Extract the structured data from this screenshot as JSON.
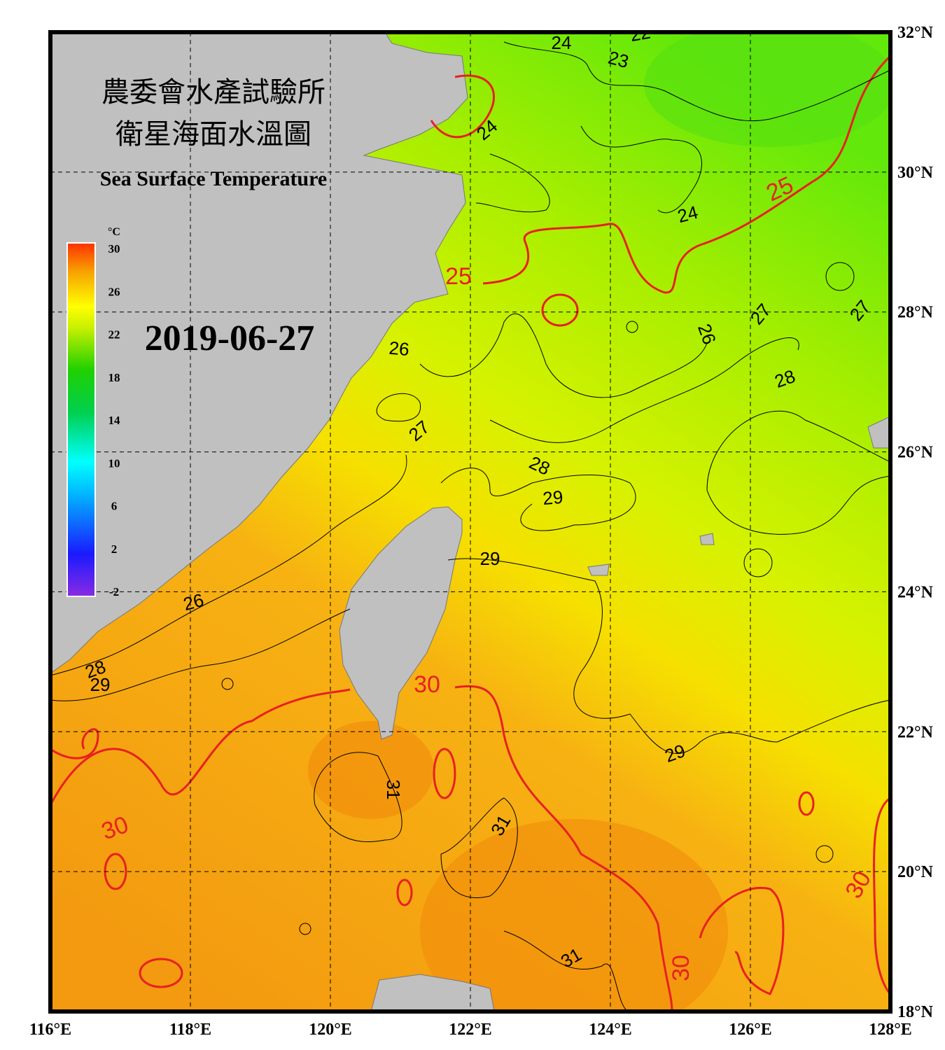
{
  "map": {
    "title_zh": [
      "農委會水產試驗所",
      "衛星海面水溫圖"
    ],
    "title_en": "Sea Surface Temperature",
    "date": "2019-06-27",
    "colorbar": {
      "unit": "°C",
      "ticks": [
        30,
        26,
        22,
        18,
        14,
        10,
        6,
        2,
        -2
      ]
    },
    "lon_ticks": [
      {
        "value": 116,
        "label": "116°E"
      },
      {
        "value": 118,
        "label": "118°E"
      },
      {
        "value": 120,
        "label": "120°E"
      },
      {
        "value": 122,
        "label": "122°E"
      },
      {
        "value": 124,
        "label": "124°E"
      },
      {
        "value": 126,
        "label": "126°E"
      },
      {
        "value": 128,
        "label": "128°E"
      }
    ],
    "lat_ticks": [
      {
        "value": 32,
        "label": "32°N"
      },
      {
        "value": 30,
        "label": "30°N"
      },
      {
        "value": 28,
        "label": "28°N"
      },
      {
        "value": 26,
        "label": "26°N"
      },
      {
        "value": 24,
        "label": "24°N"
      },
      {
        "value": 22,
        "label": "22°N"
      },
      {
        "value": 20,
        "label": "20°N"
      },
      {
        "value": 18,
        "label": "18°N"
      }
    ],
    "contour_labels": [
      "22",
      "24",
      "23",
      "24",
      "24",
      "26",
      "26",
      "27",
      "27",
      "28",
      "27",
      "28",
      "29",
      "29",
      "26",
      "28",
      "29",
      "29",
      "31",
      "31",
      "31"
    ],
    "red_contour_labels": [
      "25",
      "25",
      "30",
      "30",
      "30",
      "30"
    ]
  }
}
